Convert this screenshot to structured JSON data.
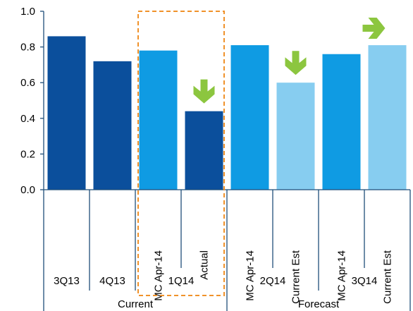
{
  "chart_data": {
    "type": "bar",
    "title": "",
    "xlabel": "",
    "ylabel": "",
    "ylim": [
      0,
      1.0
    ],
    "yticks": [
      "0.0",
      "0.2",
      "0.4",
      "0.6",
      "0.8",
      "1.0"
    ],
    "bars": [
      {
        "group": "3Q13",
        "sub": "",
        "value": 0.86,
        "color": "#0b4f9c"
      },
      {
        "group": "4Q13",
        "sub": "",
        "value": 0.72,
        "color": "#0b4f9c"
      },
      {
        "group": "1Q14",
        "sub": "MC Apr-14",
        "value": 0.78,
        "color": "#0f9be3"
      },
      {
        "group": "1Q14",
        "sub": "Actual",
        "value": 0.44,
        "color": "#0b4f9c"
      },
      {
        "group": "2Q14",
        "sub": "MC Apr-14",
        "value": 0.81,
        "color": "#0f9be3"
      },
      {
        "group": "2Q14",
        "sub": "Current Est",
        "value": 0.6,
        "color": "#87cdf0"
      },
      {
        "group": "3Q14",
        "sub": "MC Apr-14",
        "value": 0.76,
        "color": "#0f9be3"
      },
      {
        "group": "3Q14",
        "sub": "Current Est",
        "value": 0.81,
        "color": "#87cdf0"
      }
    ],
    "groups": [
      {
        "label": "3Q13",
        "span": [
          0,
          0
        ]
      },
      {
        "label": "4Q13",
        "span": [
          1,
          1
        ]
      },
      {
        "label": "1Q14",
        "span": [
          2,
          3
        ]
      },
      {
        "label": "2Q14",
        "span": [
          4,
          5
        ]
      },
      {
        "label": "3Q14",
        "span": [
          6,
          7
        ]
      }
    ],
    "super_groups": [
      {
        "label": "Current",
        "span": [
          0,
          3
        ]
      },
      {
        "label": "Forecast",
        "span": [
          4,
          7
        ]
      }
    ],
    "annotations": [
      {
        "type": "arrow-down",
        "bar": 3,
        "color": "#8cc63f"
      },
      {
        "type": "arrow-down",
        "bar": 5,
        "color": "#8cc63f"
      },
      {
        "type": "arrow-right",
        "bar": 6,
        "color": "#8cc63f"
      },
      {
        "type": "dashed-box",
        "span": [
          2,
          3
        ],
        "color": "#f0922b"
      }
    ],
    "grid": false
  }
}
